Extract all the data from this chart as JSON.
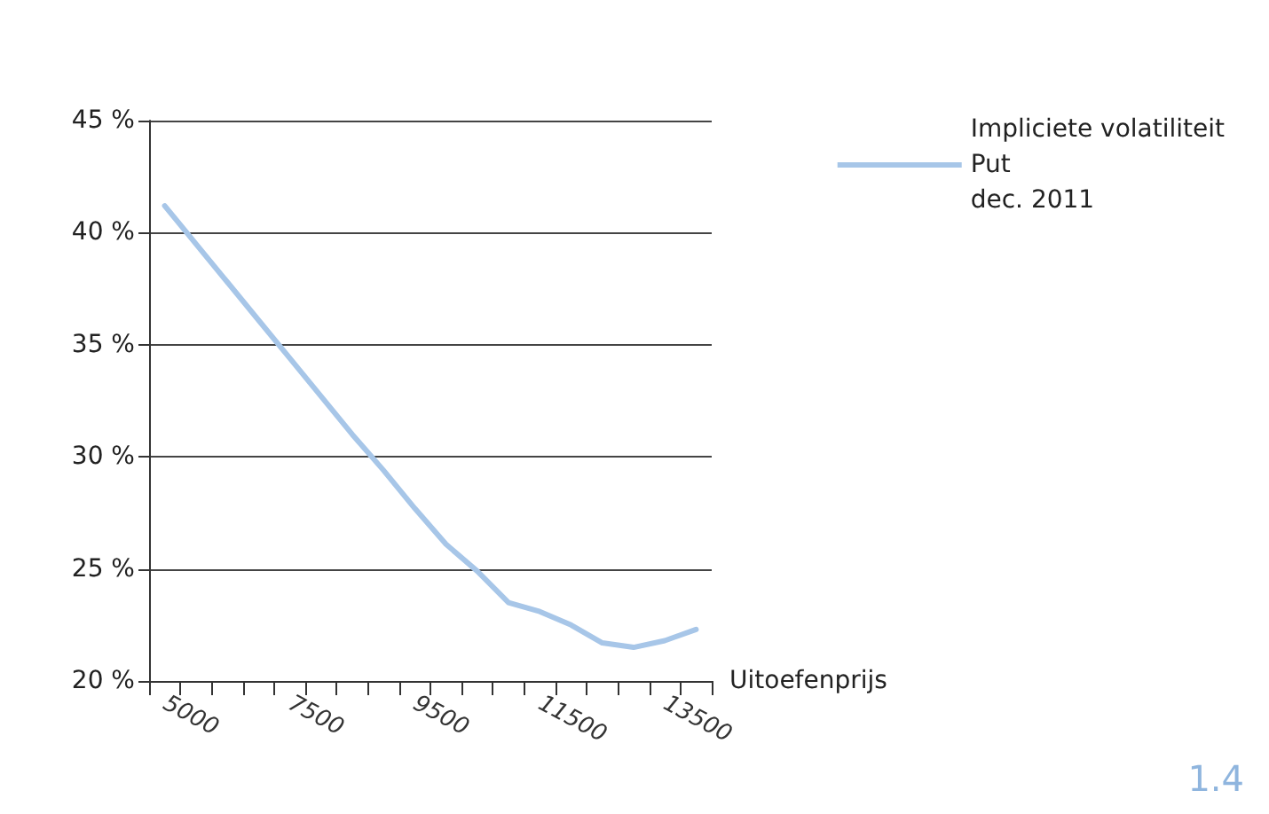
{
  "chart_data": {
    "type": "line",
    "xlabel": "Uitoefenprijs",
    "categories": [
      "5000",
      null,
      null,
      null,
      "7500",
      null,
      null,
      null,
      "9500",
      null,
      null,
      null,
      "11500",
      null,
      null,
      null,
      "13500",
      null
    ],
    "series": [
      {
        "name": "Impliciete volatiliteit\nPut\ndec. 2011",
        "color": "#a7c6e8",
        "values": [
          41.2,
          39.5,
          37.8,
          36.1,
          34.4,
          32.7,
          31.0,
          29.4,
          27.7,
          26.1,
          24.9,
          23.5,
          23.1,
          22.5,
          21.7,
          21.5,
          21.8,
          22.3
        ]
      }
    ],
    "ylim": [
      20,
      45
    ],
    "yticks": [
      {
        "value": 20,
        "label": "20 %"
      },
      {
        "value": 25,
        "label": "25 %"
      },
      {
        "value": 30,
        "label": "30 %"
      },
      {
        "value": 35,
        "label": "35 %"
      },
      {
        "value": 40,
        "label": "40 %"
      },
      {
        "value": 45,
        "label": "45 %"
      }
    ],
    "grid": "y",
    "legend": "top right",
    "marker": "none",
    "line_style": "solid",
    "annotations": [
      "1.4"
    ]
  }
}
